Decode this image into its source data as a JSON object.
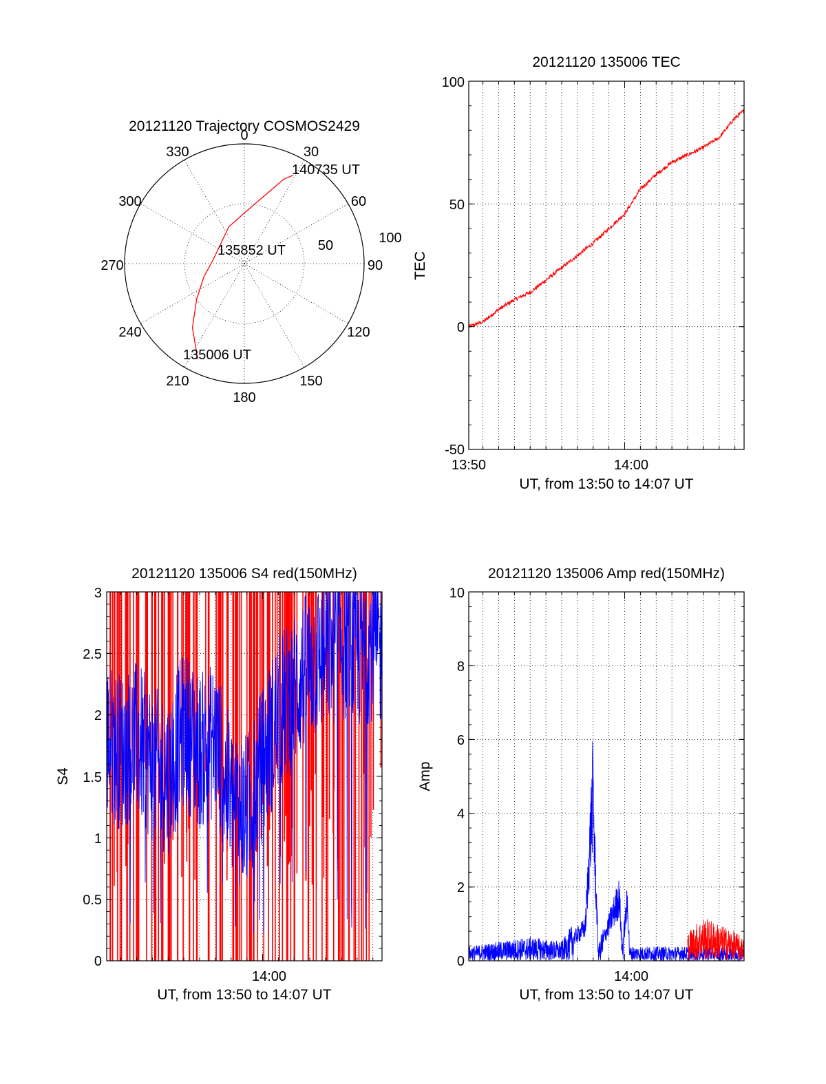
{
  "colors": {
    "red": "#ff0000",
    "blue": "#0000ff",
    "axis": "#000000",
    "background": "#ffffff"
  },
  "chart_data": [
    {
      "id": "trajectory",
      "type": "polar",
      "title": "20121120 Trajectory COSMOS2429",
      "angle_ticks": [
        "0",
        "30",
        "60",
        "90",
        "120",
        "150",
        "180",
        "210",
        "240",
        "270",
        "300",
        "330"
      ],
      "radial_ticks": [
        "50",
        "100"
      ],
      "rlim": [
        0,
        100
      ],
      "grid": true,
      "series": [
        {
          "color": "#ff0000",
          "points": [
            {
              "az": 206,
              "el": 10
            },
            {
              "az": 219,
              "el": 28
            },
            {
              "az": 233,
              "el": 45
            },
            {
              "az": 252,
              "el": 58
            },
            {
              "az": 275,
              "el": 66
            },
            {
              "az": 308,
              "el": 67
            },
            {
              "az": 337,
              "el": 60
            },
            {
              "az": 0,
              "el": 52
            },
            {
              "az": 17,
              "el": 36
            },
            {
              "az": 25,
              "el": 20
            },
            {
              "az": 29,
              "el": 14
            }
          ]
        }
      ],
      "annotations": [
        {
          "text": "135006 UT",
          "az": 206,
          "el": 10
        },
        {
          "text": "135852 UT",
          "az": 275,
          "el": 66
        },
        {
          "text": "140735 UT",
          "az": 29,
          "el": 14
        }
      ]
    },
    {
      "id": "tec",
      "type": "line",
      "title": "20121120 135006 TEC",
      "xlabel": "UT, from 13:50 to 14:07 UT",
      "ylabel": "TEC",
      "xlim": [
        "13:50:06",
        "14:07:35"
      ],
      "ylim": [
        -50,
        100
      ],
      "x_ticks": [
        "13:50",
        "14:00"
      ],
      "y_ticks": [
        "-50",
        "0",
        "50",
        "100"
      ],
      "grid": true,
      "series": [
        {
          "color": "#ff0000",
          "x": [
            "13:50:06",
            "13:51:00",
            "13:52:00",
            "13:53:00",
            "13:54:00",
            "13:55:00",
            "13:56:00",
            "13:57:00",
            "13:58:00",
            "13:59:00",
            "14:00:00",
            "14:01:00",
            "14:02:00",
            "14:03:00",
            "14:04:00",
            "14:05:00",
            "14:06:00",
            "14:07:00",
            "14:07:35"
          ],
          "y": [
            0,
            2,
            7,
            11,
            14,
            19,
            24,
            29,
            34,
            40,
            46,
            56,
            62,
            67,
            70,
            73,
            77,
            85,
            88
          ]
        }
      ]
    },
    {
      "id": "s4",
      "type": "line",
      "title": "20121120 135006 S4 red(150MHz)",
      "xlabel": "UT, from 13:50 to 14:07 UT",
      "ylabel": "S4",
      "xlim": [
        "13:50:06",
        "14:07:35"
      ],
      "ylim": [
        0,
        3
      ],
      "x_ticks": [
        "14:00"
      ],
      "y_ticks": [
        "0",
        "0.5",
        "1",
        "1.5",
        "2",
        "2.5",
        "3"
      ],
      "grid": true,
      "series": [
        {
          "color": "#ff0000",
          "description_values": "dense spikes between 0 and 3 over whole interval",
          "x": [
            "13:50:06",
            "13:53:00",
            "13:56:00",
            "13:59:00",
            "14:02:00",
            "14:05:00",
            "14:07:35"
          ],
          "y": [
            1.5,
            2.0,
            1.0,
            2.5,
            1.5,
            2.5,
            2.0
          ]
        },
        {
          "color": "#0000ff",
          "x": [
            "13:50:06",
            "13:51:00",
            "13:52:00",
            "13:53:00",
            "13:54:00",
            "13:55:00",
            "13:56:00",
            "13:57:00",
            "13:58:00",
            "13:59:00",
            "14:00:00",
            "14:01:00",
            "14:02:00",
            "14:03:00",
            "14:04:00",
            "14:05:00",
            "14:06:00",
            "14:07:00",
            "14:07:35"
          ],
          "y": [
            1.8,
            1.7,
            1.8,
            1.6,
            1.5,
            1.9,
            1.7,
            1.8,
            1.3,
            1.2,
            1.6,
            2.0,
            2.2,
            2.4,
            2.5,
            2.6,
            2.5,
            2.6,
            2.5
          ]
        }
      ]
    },
    {
      "id": "amp",
      "type": "line",
      "title": "20121120 135006 Amp red(150MHz)",
      "xlabel": "UT, from 13:50 to 14:07 UT",
      "ylabel": "Amp",
      "xlim": [
        "13:50:06",
        "14:07:35"
      ],
      "ylim": [
        0,
        10
      ],
      "x_ticks": [
        "14:00"
      ],
      "y_ticks": [
        "0",
        "2",
        "4",
        "6",
        "8",
        "10"
      ],
      "grid": true,
      "series": [
        {
          "color": "#0000ff",
          "x": [
            "13:50:06",
            "13:52:00",
            "13:54:00",
            "13:56:00",
            "13:57:30",
            "13:58:00",
            "13:58:05",
            "13:58:20",
            "13:59:40",
            "13:59:50",
            "14:00:10",
            "14:00:20",
            "14:02:00",
            "14:04:00",
            "14:06:00",
            "14:07:35"
          ],
          "y": [
            0.3,
            0.4,
            0.5,
            0.4,
            1.2,
            6.3,
            4.0,
            0.3,
            2.3,
            0.4,
            2.1,
            0.3,
            0.3,
            0.3,
            0.3,
            0.3
          ]
        },
        {
          "color": "#ff0000",
          "x": [
            "14:04:00",
            "14:05:00",
            "14:06:00",
            "14:07:00",
            "14:07:35"
          ],
          "y": [
            0.8,
            1.2,
            1.0,
            0.8,
            0.6
          ]
        }
      ]
    }
  ]
}
